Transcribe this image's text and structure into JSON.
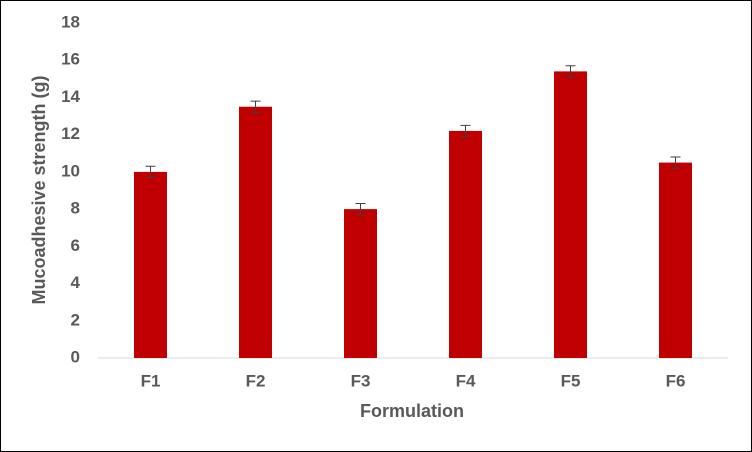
{
  "chart_data": {
    "type": "bar",
    "x_label": "Formulation",
    "y_label": "Mucoadhesive strength (g)",
    "categories": [
      "F1",
      "F2",
      "F3",
      "F4",
      "F5",
      "F6"
    ],
    "values": [
      10,
      13.5,
      8,
      12.2,
      15.4,
      10.5
    ],
    "errors": [
      0.3,
      0.3,
      0.3,
      0.3,
      0.3,
      0.3
    ],
    "color": "#c00000",
    "ylim": [
      0,
      18
    ],
    "yticks": [
      0,
      2,
      4,
      6,
      8,
      10,
      12,
      14,
      16,
      18
    ],
    "grid": false
  }
}
